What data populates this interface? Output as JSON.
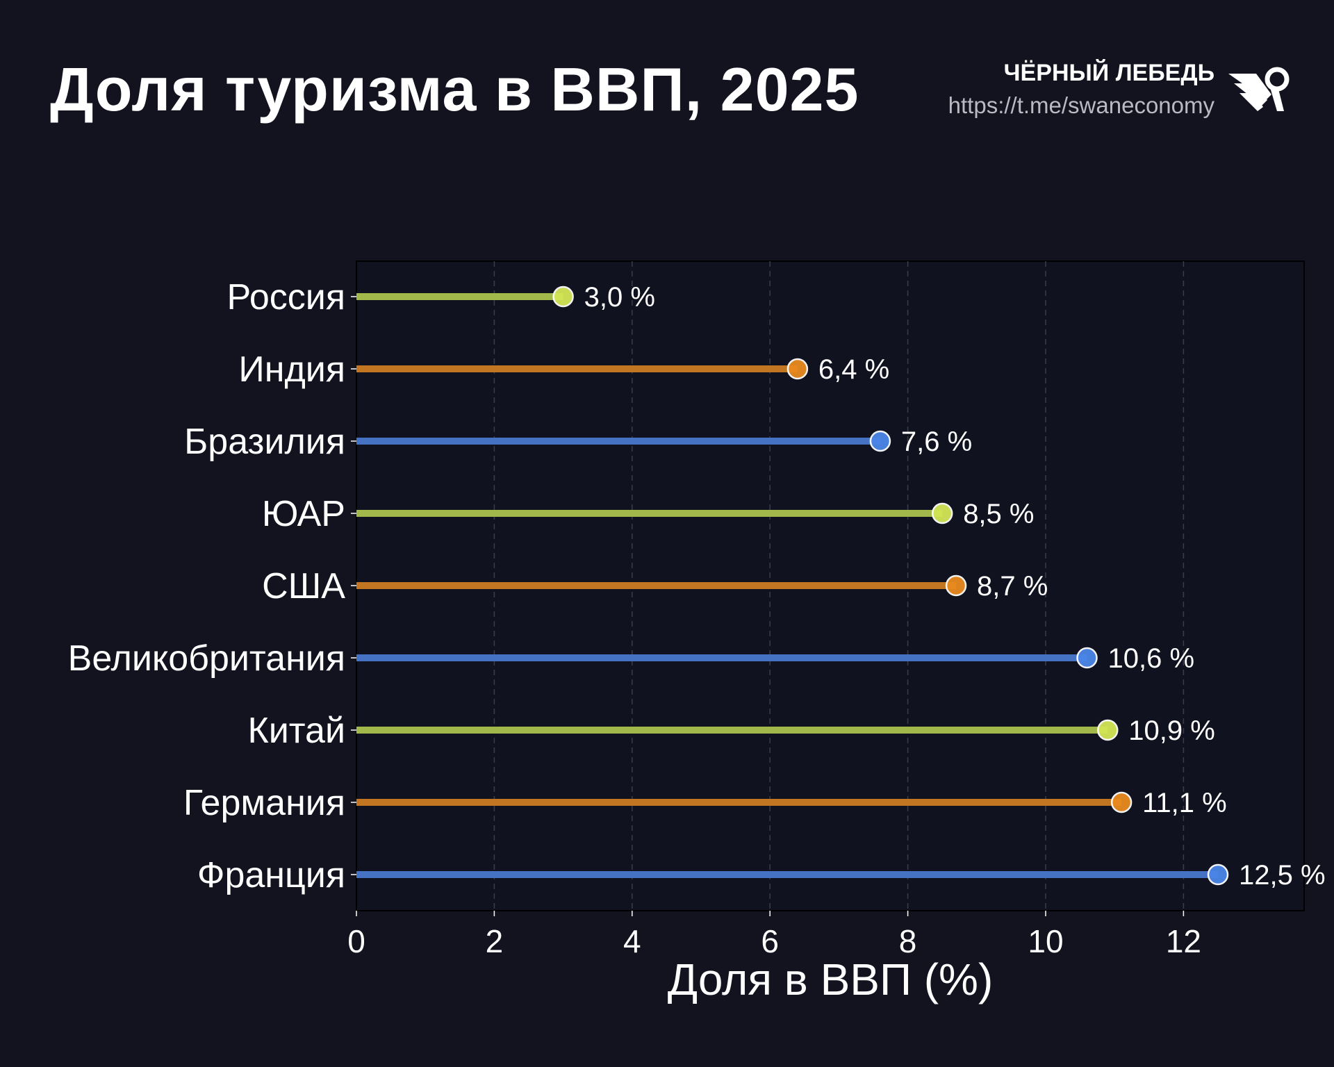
{
  "header": {
    "title": "Доля туризма в ВВП, 2025",
    "brand_name": "ЧЁРНЫЙ ЛЕБЕДЬ",
    "brand_url": "https://t.me/swaneconomy",
    "logo_icon": "swan-logo-icon"
  },
  "chart_data": {
    "type": "lollipop-horizontal",
    "title": "Доля туризма в ВВП, 2025",
    "xlabel": "Доля в ВВП (%)",
    "ylabel": "",
    "xlim": [
      0,
      13.75
    ],
    "xticks": [
      "0",
      "2",
      "4",
      "6",
      "8",
      "10",
      "12"
    ],
    "grid": "vertical dashed",
    "categories": [
      "Россия",
      "Индия",
      "Бразилия",
      "ЮАР",
      "США",
      "Великобритания",
      "Китай",
      "Германия",
      "Франция"
    ],
    "values": [
      3.0,
      6.4,
      7.6,
      8.5,
      8.7,
      10.6,
      10.9,
      11.1,
      12.5
    ],
    "value_labels": [
      "3,0 %",
      "6,4 %",
      "7,6 %",
      "8,5 %",
      "8,7 %",
      "10,6 %",
      "10,9 %",
      "11,1 %",
      "12,5 %"
    ],
    "colors": [
      "green",
      "orange",
      "blue",
      "green",
      "orange",
      "blue",
      "green",
      "orange",
      "blue"
    ],
    "palette": {
      "green": {
        "line": "#a3b84a",
        "marker": "#d2e655"
      },
      "orange": {
        "line": "#c27622",
        "marker": "#e98b1f"
      },
      "blue": {
        "line": "#4672c4",
        "marker": "#4a86e8"
      }
    },
    "background": "#12131f"
  }
}
